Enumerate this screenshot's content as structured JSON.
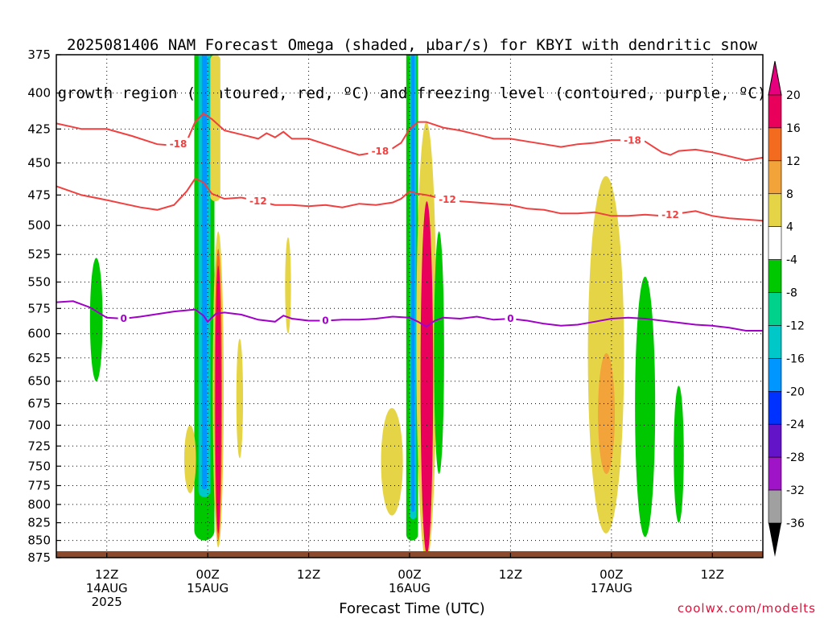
{
  "title": {
    "line1": "2025081406 NAM Forecast Omega (shaded, µbar/s) for KBYI with dendritic snow",
    "line2": "growth region (contoured, red, ºC) and freezing level (contoured, purple, ºC)"
  },
  "credit": "coolwx.com/modelts",
  "chart_data": {
    "type": "heatmap",
    "xlabel": "Forecast Time (UTC)",
    "ylabel": "",
    "y_axis": {
      "reversed": true,
      "ylim": [
        375,
        875
      ],
      "ticks": [
        375,
        400,
        425,
        450,
        475,
        500,
        525,
        550,
        575,
        600,
        625,
        650,
        675,
        700,
        725,
        750,
        775,
        800,
        825,
        850,
        875
      ]
    },
    "x_axis": {
      "xlim": [
        0,
        84
      ],
      "ticks": [
        {
          "hour": 6,
          "label": "12Z",
          "sub": "14AUG",
          "sub2": "2025"
        },
        {
          "hour": 18,
          "label": "00Z",
          "sub": "15AUG",
          "sub2": ""
        },
        {
          "hour": 30,
          "label": "12Z",
          "sub": "",
          "sub2": ""
        },
        {
          "hour": 42,
          "label": "00Z",
          "sub": "16AUG",
          "sub2": ""
        },
        {
          "hour": 54,
          "label": "12Z",
          "sub": "",
          "sub2": ""
        },
        {
          "hour": 66,
          "label": "00Z",
          "sub": "17AUG",
          "sub2": ""
        },
        {
          "hour": 78,
          "label": "12Z",
          "sub": "",
          "sub2": ""
        }
      ]
    },
    "grid": true,
    "colorbar": {
      "labels": [
        "20",
        "16",
        "12",
        "8",
        "4",
        "-4",
        "-8",
        "-12",
        "-16",
        "-20",
        "-24",
        "-28",
        "-32",
        "-36"
      ],
      "colors": [
        "#e8005a",
        "#f26b1e",
        "#f2a33a",
        "#e6d447",
        "#ffffff",
        "#00c800",
        "#00d28c",
        "#00c8c8",
        "#0096ff",
        "#0032ff",
        "#6414c8",
        "#a014c8",
        "#a0a0a0"
      ],
      "top_arrow_color": "#e6007e",
      "bottom_arrow_color": "#000000"
    },
    "series": [
      {
        "name": "-18",
        "color": "#f04040",
        "label_hours": [
          14.5,
          38.5,
          68.5
        ],
        "x": [
          0,
          3,
          6,
          9,
          12,
          14,
          15.5,
          16.5,
          17.5,
          18.5,
          20,
          22,
          24,
          25,
          26,
          27,
          28,
          30,
          32,
          34,
          36,
          38,
          40,
          41,
          42,
          43,
          44,
          46,
          48,
          50,
          52,
          54,
          56,
          58,
          60,
          62,
          64,
          66,
          68,
          70,
          72,
          73,
          74,
          76,
          78,
          80,
          82,
          84
        ],
        "y": [
          421,
          425,
          425,
          430,
          436,
          437,
          434,
          420,
          414,
          418,
          426,
          429,
          432,
          428,
          431,
          427,
          432,
          432,
          436,
          440,
          444,
          442,
          439,
          435,
          425,
          420,
          420,
          424,
          426,
          429,
          432,
          432,
          434,
          436,
          438,
          436,
          435,
          433,
          433,
          434,
          442,
          444,
          441,
          440,
          442,
          445,
          448,
          446
        ]
      },
      {
        "name": "-12",
        "color": "#f04040",
        "label_hours": [
          24,
          46.5,
          73
        ],
        "x": [
          0,
          3,
          6,
          8,
          10,
          12,
          14,
          15.5,
          16.5,
          17.5,
          18.5,
          20,
          22,
          24,
          26,
          28,
          30,
          32,
          34,
          36,
          38,
          40,
          41,
          42,
          43,
          44,
          46,
          48,
          50,
          52,
          54,
          56,
          58,
          60,
          62,
          64,
          66,
          68,
          70,
          72,
          74,
          76,
          78,
          80,
          82,
          84
        ],
        "y": [
          468,
          475,
          479,
          482,
          485,
          487,
          483,
          472,
          462,
          465,
          474,
          478,
          477,
          480,
          483,
          483,
          484,
          483,
          485,
          482,
          483,
          481,
          478,
          472,
          474,
          475,
          478,
          480,
          481,
          482,
          483,
          486,
          487,
          490,
          490,
          489,
          492,
          492,
          491,
          492,
          490,
          488,
          492,
          494,
          495,
          496
        ]
      },
      {
        "name": "0",
        "color": "#a000c8",
        "label_hours": [
          8,
          32,
          54
        ],
        "x": [
          0,
          2,
          4,
          6,
          8,
          10,
          14,
          16.5,
          17.5,
          18,
          19,
          20,
          22,
          24,
          26,
          27,
          28,
          30,
          32,
          34,
          36,
          38,
          40,
          42,
          43,
          44,
          45,
          46,
          48,
          50,
          52,
          54,
          56,
          58,
          60,
          62,
          64,
          66,
          68,
          70,
          72,
          74,
          76,
          78,
          80,
          82,
          84
        ],
        "y": [
          569,
          568,
          574,
          584,
          585,
          583,
          578,
          576,
          582,
          588,
          580,
          579,
          581,
          586,
          588,
          582,
          585,
          587,
          587,
          586,
          586,
          585,
          583,
          584,
          588,
          593,
          587,
          584,
          585,
          583,
          586,
          585,
          587,
          590,
          592,
          591,
          588,
          585,
          584,
          585,
          587,
          589,
          591,
          592,
          594,
          597,
          597
        ]
      }
    ]
  }
}
